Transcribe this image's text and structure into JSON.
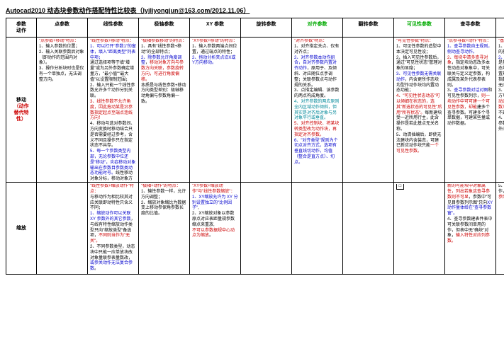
{
  "title": "Autocad2010 动态块参数动作搭配特性比较表（lyjliyongjun@163.com/2012.11.06）",
  "corner_label_top": "参数",
  "corner_label_bottom": "动作",
  "headers": [
    {
      "text": "点参数",
      "color": "#000"
    },
    {
      "text": "线性参数",
      "color": "#000"
    },
    {
      "text": "极轴参数",
      "color": "#000"
    },
    {
      "text": "XY 参数",
      "color": "#000"
    },
    {
      "text": "旋转参数",
      "color": "#000"
    },
    {
      "text": "对齐参数",
      "color": "#0a0"
    },
    {
      "text": "翻转参数",
      "color": "#000"
    },
    {
      "text": "可见性参数",
      "color": "#0a0"
    },
    {
      "text": "查寻参数",
      "color": "#000"
    },
    {
      "text": "基点参数",
      "color": "#0a0"
    }
  ],
  "rows": [
    {
      "label_parts": [
        {
          "t": "移动",
          "c": "#000"
        },
        {
          "t": "（动作",
          "c": "#c00"
        },
        {
          "t": "替代特",
          "c": "#c00"
        },
        {
          "t": "性）",
          "c": "#c00"
        }
      ],
      "cells": [
        {
          "html": "<span class='red'>\"点参数+移动\"特点：</span><br>1、输入参数的位置；<br>2、输入关联参数后对象（即动作的范围内对象）。<br>3、操作分析块时也是仅有一个单独点，无法调整方向。"
        },
        {
          "html": "<span class='red'>\"线性参数+移动\"特点：</span><br><span class='blue'>1、可以打开\"参数1\"的窗体，填入\"距离类型\"列表中项；</span><br>通过选择项等于填\"增量\"或为另外参数确定增量方，\"最小值\"\"最大值\"以设置限制范围；<br>2、输入只能一个线性参数允许多个动作分别关联。<br><span class='red'>3、线性参数不允许角度，因此拖动某是沿参数指定起点至端点连线方向！</span><br>4、移动与选对参数间、方向变换时移动结合只是否需要经过参考，含义不同且操作只在指定状态不共存。<br><span class='blue'>5、每一个参数类型内部，无论参数中位还是\"移动\"，炎症移动对象输出在参数目参数类动态功能时号。</span>线性移动对象分标，移动对象方移动上为也象分参数移动方向。"
        },
        {
          "html": "<span class='red'>\"极轴参数移动\"的特点：</span><br>1、具有\"线性参数+移动\"的全部特点；<br><span class='blue'>2、除参数允许角度调整</span>，<span class='red'>移动对象方向与参数方向关联，参数旋转方向，可进行角度偏移。</span><br>本质是与线性参数+移动方向类型差别：极轴移动角偏与参数角偏一致。"
        },
        {
          "html": "<span class='red'>\"XY参数+移动\"的特点：</span><br>1、输入参数两端点间位置，通过端点的特性；<br><span class='blue'>2、拖动分析夹点沿X或Y方向移动。</span>"
        },
        {
          "html": ""
        },
        {
          "html": "<span class='red'>\"对齐参数\"特点：</span><br>1、对齐指定关点、仅有对齐点；<br><span class='blue'>2、对齐参数本动作组合，自对齐参数内置对齐动作</span>，原用于、及倾斜、对应随位点手调整；关联参数点与动作规的关系。<br>3、点指定编辑、该参数的两点构成角度。<br><span class='teal'>4、对齐参数的两应原则全内区域动作倾斜，但其实是对齐后对象与另对象平行或垂直。</span><br><span class='red'>5、对齐控制块、将某块转类型改为动作块，再指定对齐参数。</span><br><span class='blue'>6、\"对齐类型\"规则为个切点对齐方式，选项有垂直线切动作，均值（整合是直方点）、切点。</span>"
        },
        {
          "html": ""
        },
        {
          "html": "<span class='red'>\"可见性参数\"特点：</span><br>1、可见性参数的造型中本决定可见性设；<br>2、插入可见性参数后，通过\"可见性状态\"管理对象的显隐；<br><span class='blue'>3、可见性参数无需关联动作</span>，内含更所作态块均型作动作块均内置动态功能；<br><span class='red'>4、\"可见性状态动态\"可以倾细在状态的，选其\"新选状态的可见性\"后用\"所有状态\"。</span>每新建块受一近所用行主，此含操作是若此基点无关名称。<br>5、动清插编后，即使无法建块内含装态，可建已新应动作块只能<span class='red'>一个可见性参数。</span>"
        },
        {
          "html": "<span class='red'>\"点参寻数+动作\"特点：</span><br><span class='blue'>1、查寻参数自主规则，侧动查寻动作。</span><br><span class='red'>2、每块中清多查寻对象</span>，指定块动态改多本性动态对象象中，可关联关与定义定参数，构成属及某外代表参表则。<br>3、<span class='blue'>查寻参数对话对图</span>和可见性参数列示，<span class='red'>则一块动作中可可建一个可见性参数，却能</span>建多个查寻参数。可建多个寻单数据，可建某些量或动作数据。"
        },
        {
          "html": "<span class='red'>\"基点参数\"特点：</span><br>1、基点参数相对定义块的基准点；<br><span class='blue'>2、基点参数无动作</span>，只是基点参数提供动作动态块内定建筑基点对位置规则，在块动态基点指数位后该块基点建类无向则后动。<br>3、基点参数位于块内的方可视的获中位置<span class='red'>（块动态内位限一个基参数）</span>，将作状态基准位可不建某位置。<br>4、基点参数对主动其它参数\"关联基点\"建点中位外向对和。"
        }
      ]
    },
    {
      "label_parts": [
        {
          "t": "缩放",
          "c": "#000"
        }
      ],
      "cells": [
        {
          "html": ""
        },
        {
          "html": "<span class='red'>\"线性参数+缩放动作\"特点：</span><br>与移动作为相比较其对应关联即动特性只含义不同；<br><span class='blue'>1、缩放动作可以关联 XY 参数外的其它参数</span>，与线有特性缩放动作类型只向\"缩放类型\"备选项，<span class='red'>不同则当作为\"无关\"。</span><br>2、不同参数类型，动态块中只能一应单放块改对象量联参表量数改，<span class='blue'>或参关动作无法复合参数</span>。"
        },
        {
          "html": "<span class='red'>\"极轴+动作\"的特点：</span><br>1、输性参数一样，允许方向调整；<br>2、缩放对象缩比为数据变上移动参保角参数长度的比值。"
        },
        {
          "html": "<span class='red'>\"XY参数+缩放动作\"与\"线性参数缩放\"：</span><br><span class='blue'>1、XY缩放允许为 XY 分别设置独立的\"比例因子\"</span>,<br>2、XY缩放对象以参数原点对应表距量规参数缩点来重放,<br><span class='red'>不可以参数据规中心动点为缩放</span>。"
        },
        {
          "html": ""
        },
        {
          "html": ""
        },
        {
          "html": ""
        },
        {
          "html": "<span style='border:1px solid #000;padding:1px;'>&nbsp;□&nbsp;</span>"
        },
        {
          "html": "<span class='red'>新的可能块中对象属性，列出若象这查寻参数则不可显</span>，参数中\"可见目参数列示图\"只向<span class='blue'>XY动作量体给在\"查寻参数窗\"。</span><br>4、查寻参数建表件表中可关联参数间单用的作，但表中无\"确块\"对象，<span class='red'>输入特性对应列参数。</span>"
        },
        {
          "html": "5、块若参主关对同一作，<span class='red'>块位移单对块大象参照对范定</span>。"
        }
      ]
    }
  ]
}
